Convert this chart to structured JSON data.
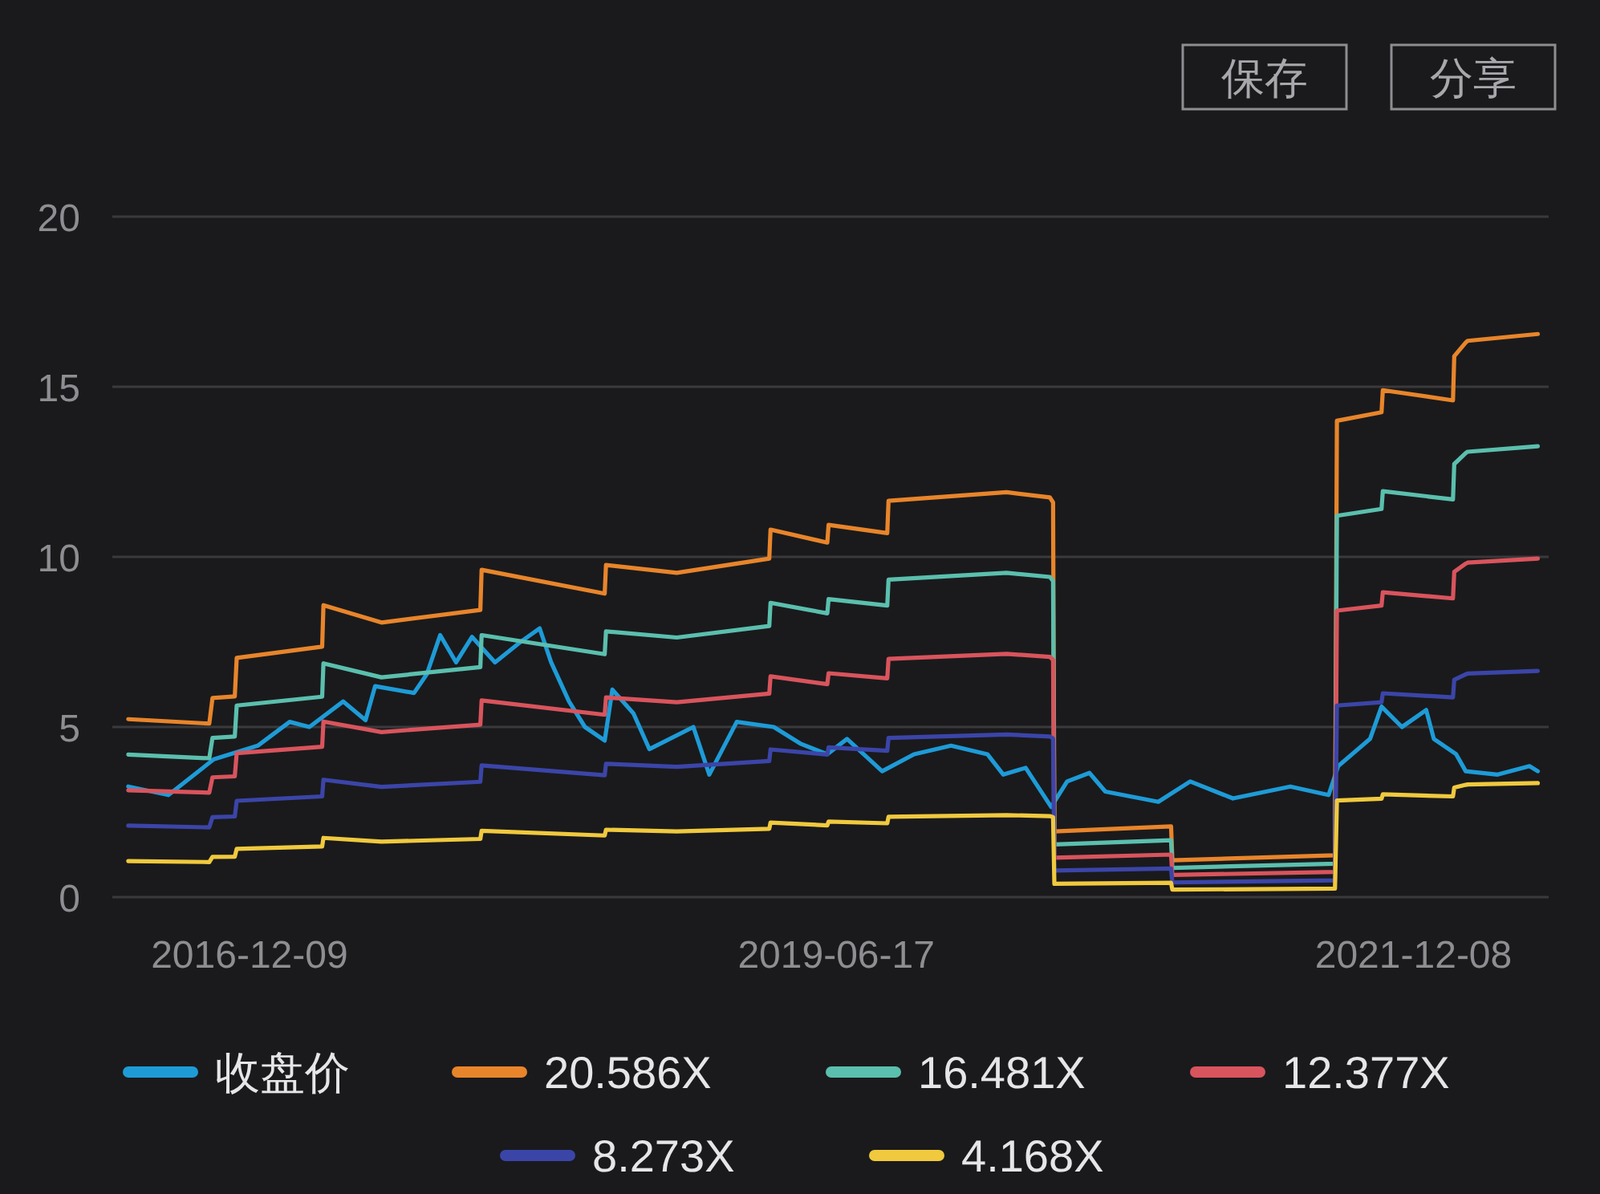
{
  "chart_data": {
    "type": "line",
    "annotations": [
      "保存",
      "分享"
    ],
    "xlim": [
      "2016-05-08",
      "2022-07-08"
    ],
    "xticks": [
      "2016-12-09",
      "2019-06-17",
      "2021-12-08"
    ],
    "ylim": [
      0,
      20
    ],
    "yticks": [
      0,
      5,
      10,
      15,
      20
    ],
    "grid": "y",
    "legend": "bottom",
    "line_style": "solid",
    "series": [
      {
        "name": "收盘价",
        "color": "#1e9bd7",
        "x": [
          "2016-06-02",
          "2016-08-04",
          "2016-10-14",
          "2016-12-22",
          "2017-02-10",
          "2017-03-13",
          "2017-05-05",
          "2017-06-09",
          "2017-06-24",
          "2017-08-24",
          "2017-09-13",
          "2017-10-04",
          "2017-10-29",
          "2017-11-23",
          "2017-12-29",
          "2018-02-07",
          "2018-03-09",
          "2018-03-27",
          "2018-04-24",
          "2018-05-19",
          "2018-06-19",
          "2018-07-01",
          "2018-08-03",
          "2018-08-28",
          "2018-11-05",
          "2018-11-30",
          "2019-01-12",
          "2019-03-11",
          "2019-04-23",
          "2019-06-03",
          "2019-07-04",
          "2019-08-28",
          "2019-10-17",
          "2019-12-14",
          "2020-02-09",
          "2020-03-05",
          "2020-04-09",
          "2020-05-19",
          "2020-06-13",
          "2020-07-18",
          "2020-08-12",
          "2020-11-03",
          "2020-12-23",
          "2021-02-28",
          "2021-05-29",
          "2021-07-28",
          "2021-08-12",
          "2021-10-01",
          "2021-10-19",
          "2021-11-20",
          "2021-12-28",
          "2022-01-09",
          "2022-02-13",
          "2022-02-28",
          "2022-04-19",
          "2022-06-08",
          "2022-06-21"
        ],
        "values": [
          3.25,
          3.0,
          4.05,
          4.45,
          5.15,
          5.0,
          5.75,
          5.2,
          6.2,
          6.0,
          6.55,
          7.7,
          6.9,
          7.65,
          6.9,
          7.5,
          7.9,
          6.9,
          5.75,
          5.0,
          4.6,
          6.1,
          5.4,
          4.35,
          5.0,
          3.6,
          5.15,
          5.0,
          4.5,
          4.2,
          4.65,
          3.7,
          4.2,
          4.45,
          4.2,
          3.6,
          3.8,
          2.65,
          3.4,
          3.65,
          3.1,
          2.8,
          3.4,
          2.9,
          3.25,
          3.0,
          3.85,
          4.65,
          5.6,
          5.0,
          5.5,
          4.65,
          4.2,
          3.7,
          3.6,
          3.85,
          3.7
        ]
      },
      {
        "name": "20.586X",
        "color": "#e8852b",
        "values": [
          5.23,
          5.1,
          5.85,
          5.9,
          7.03,
          7.36,
          8.58,
          8.07,
          8.44,
          9.62,
          8.92,
          9.76,
          9.53,
          9.95,
          10.8,
          10.42,
          10.94,
          10.7,
          11.65,
          11.9,
          11.75,
          11.6,
          1.93,
          2.08,
          1.08,
          1.23,
          14.0,
          14.25,
          14.9,
          14.6,
          15.9,
          16.3,
          16.35,
          16.55
        ]
      },
      {
        "name": "16.481X",
        "color": "#5bbfae",
        "values": [
          4.19,
          4.08,
          4.68,
          4.72,
          5.63,
          5.89,
          6.87,
          6.46,
          6.76,
          7.7,
          7.14,
          7.81,
          7.63,
          7.97,
          8.65,
          8.34,
          8.76,
          8.57,
          9.33,
          9.53,
          9.41,
          9.29,
          1.55,
          1.67,
          0.86,
          0.98,
          11.21,
          11.41,
          11.93,
          11.69,
          12.73,
          13.05,
          13.09,
          13.25
        ]
      },
      {
        "name": "12.377X",
        "color": "#d9545d",
        "values": [
          3.14,
          3.07,
          3.52,
          3.55,
          4.23,
          4.42,
          5.16,
          4.85,
          5.07,
          5.78,
          5.36,
          5.87,
          5.73,
          5.98,
          6.49,
          6.26,
          6.58,
          6.43,
          7.0,
          7.15,
          7.06,
          6.97,
          1.16,
          1.25,
          0.65,
          0.74,
          8.42,
          8.57,
          8.96,
          8.78,
          9.56,
          9.8,
          9.83,
          9.95
        ]
      },
      {
        "name": "8.273X",
        "color": "#3b45a8",
        "values": [
          2.1,
          2.05,
          2.35,
          2.37,
          2.83,
          2.96,
          3.45,
          3.24,
          3.39,
          3.87,
          3.58,
          3.92,
          3.83,
          4.0,
          4.34,
          4.19,
          4.4,
          4.3,
          4.68,
          4.78,
          4.72,
          4.66,
          0.78,
          0.84,
          0.43,
          0.49,
          5.63,
          5.73,
          5.99,
          5.87,
          6.39,
          6.55,
          6.57,
          6.65
        ]
      },
      {
        "name": "4.168X",
        "color": "#f0c93e",
        "values": [
          1.06,
          1.03,
          1.18,
          1.19,
          1.42,
          1.49,
          1.74,
          1.63,
          1.71,
          1.95,
          1.81,
          1.98,
          1.93,
          2.01,
          2.19,
          2.11,
          2.22,
          2.17,
          2.36,
          2.41,
          2.38,
          2.35,
          0.39,
          0.42,
          0.22,
          0.25,
          2.84,
          2.89,
          3.02,
          2.96,
          3.22,
          3.3,
          3.31,
          3.35
        ]
      }
    ],
    "x": [
      "2016-06-02",
      "2016-10-07",
      "2016-10-12",
      "2016-11-16",
      "2016-11-19",
      "2017-04-02",
      "2017-04-04",
      "2017-07-04",
      "2017-12-06",
      "2017-12-08",
      "2018-06-19",
      "2018-06-21",
      "2018-10-10",
      "2019-03-04",
      "2019-03-06",
      "2019-06-03",
      "2019-06-05",
      "2019-09-05",
      "2019-09-07",
      "2020-03-10",
      "2020-05-17",
      "2020-05-22",
      "2020-05-24",
      "2020-11-23",
      "2020-11-25",
      "2021-08-07",
      "2021-08-10",
      "2021-10-19",
      "2021-10-21",
      "2022-02-08",
      "2022-02-10",
      "2022-02-28",
      "2022-03-03",
      "2022-06-21"
    ]
  }
}
